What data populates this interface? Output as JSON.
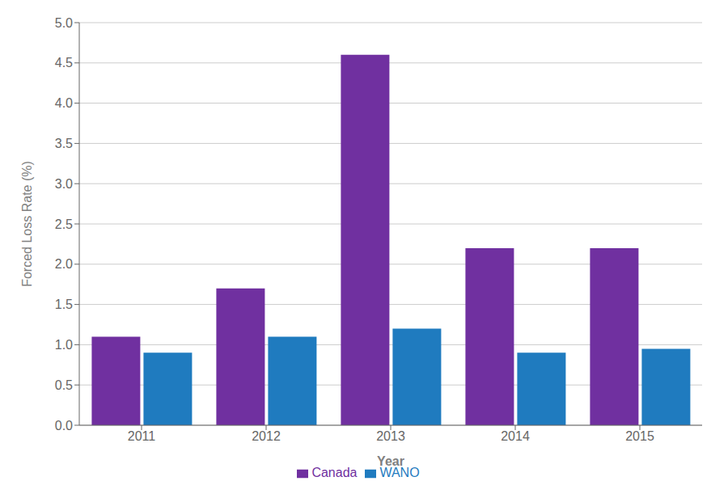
{
  "chart_data": {
    "type": "bar",
    "categories": [
      "2011",
      "2012",
      "2013",
      "2014",
      "2015"
    ],
    "series": [
      {
        "name": "Canada",
        "color": "#7030A0",
        "values": [
          1.1,
          1.7,
          4.6,
          2.2,
          2.2
        ]
      },
      {
        "name": "WANO",
        "color": "#1F7BBF",
        "values": [
          0.9,
          1.1,
          1.2,
          0.9,
          0.95
        ]
      }
    ],
    "xlabel": "Year",
    "ylabel": "Forced Loss Rate  (%)",
    "ylim": [
      0,
      5.0
    ],
    "yticks": [
      {
        "value": 0,
        "label": "0.0"
      },
      0.5,
      {
        "value": 1,
        "label": "1.0"
      },
      1.5,
      {
        "value": 2,
        "label": "2.0"
      },
      2.5,
      {
        "value": 3,
        "label": "3.0"
      },
      3.5,
      {
        "value": 4,
        "label": "4.0"
      },
      4.5,
      {
        "value": 5,
        "label": "5.0"
      }
    ],
    "grid": true,
    "legend": "bottom"
  }
}
